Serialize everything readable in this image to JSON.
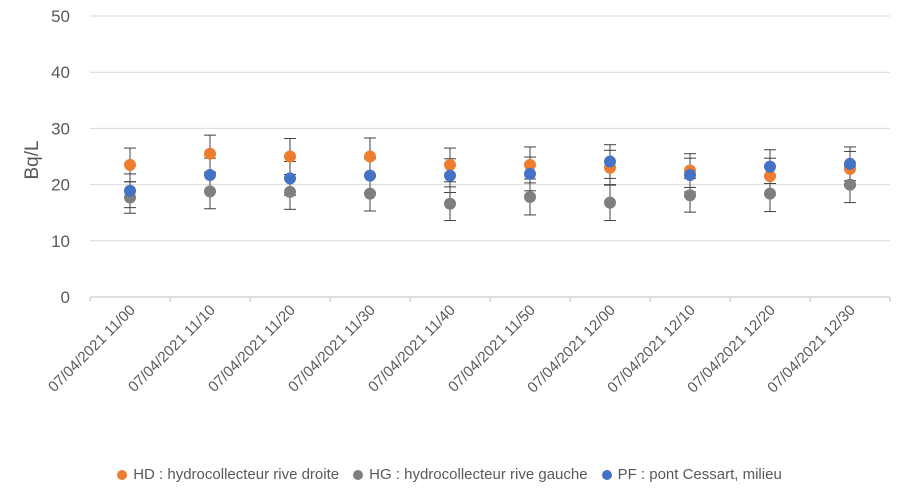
{
  "chart_data": {
    "type": "scatter",
    "title": "",
    "xlabel": "",
    "ylabel": "Bq/L",
    "ylim": [
      0,
      50
    ],
    "yticks": [
      0,
      10,
      20,
      30,
      40,
      50
    ],
    "categories": [
      "07/04/2021 11/00",
      "07/04/2021 11/10",
      "07/04/2021 11/20",
      "07/04/2021 11/30",
      "07/04/2021 11/40",
      "07/04/2021 11/50",
      "07/04/2021 12/00",
      "07/04/2021 12/10",
      "07/04/2021 12/20",
      "07/04/2021 12/30"
    ],
    "grid": true,
    "legend_position": "bottom",
    "series": [
      {
        "name": "HD : hydrocollecteur rive droite",
        "color": "#ED7D31",
        "values": [
          23.5,
          25.5,
          25.0,
          25.0,
          23.5,
          23.5,
          23.0,
          22.5,
          21.5,
          22.8
        ],
        "error": [
          3.0,
          3.3,
          3.2,
          3.3,
          3.0,
          3.2,
          3.1,
          3.0,
          3.2,
          3.1
        ]
      },
      {
        "name": "HG : hydrocollecteur rive gauche",
        "color": "#7F7F7F",
        "values": [
          17.7,
          18.8,
          18.7,
          18.4,
          16.6,
          17.8,
          16.8,
          18.1,
          18.4,
          20.0
        ],
        "error": [
          2.8,
          3.1,
          3.1,
          3.1,
          3.0,
          3.2,
          3.2,
          3.0,
          3.2,
          3.2
        ]
      },
      {
        "name": "PF : pont Cessart, milieu",
        "color": "#4472C4",
        "values": [
          18.9,
          21.7,
          21.1,
          21.6,
          21.6,
          21.9,
          24.1,
          21.7,
          23.2,
          23.7
        ],
        "error": [
          3.0,
          3.0,
          3.0,
          3.0,
          3.0,
          3.0,
          3.0,
          3.0,
          3.0,
          3.0
        ]
      }
    ]
  }
}
